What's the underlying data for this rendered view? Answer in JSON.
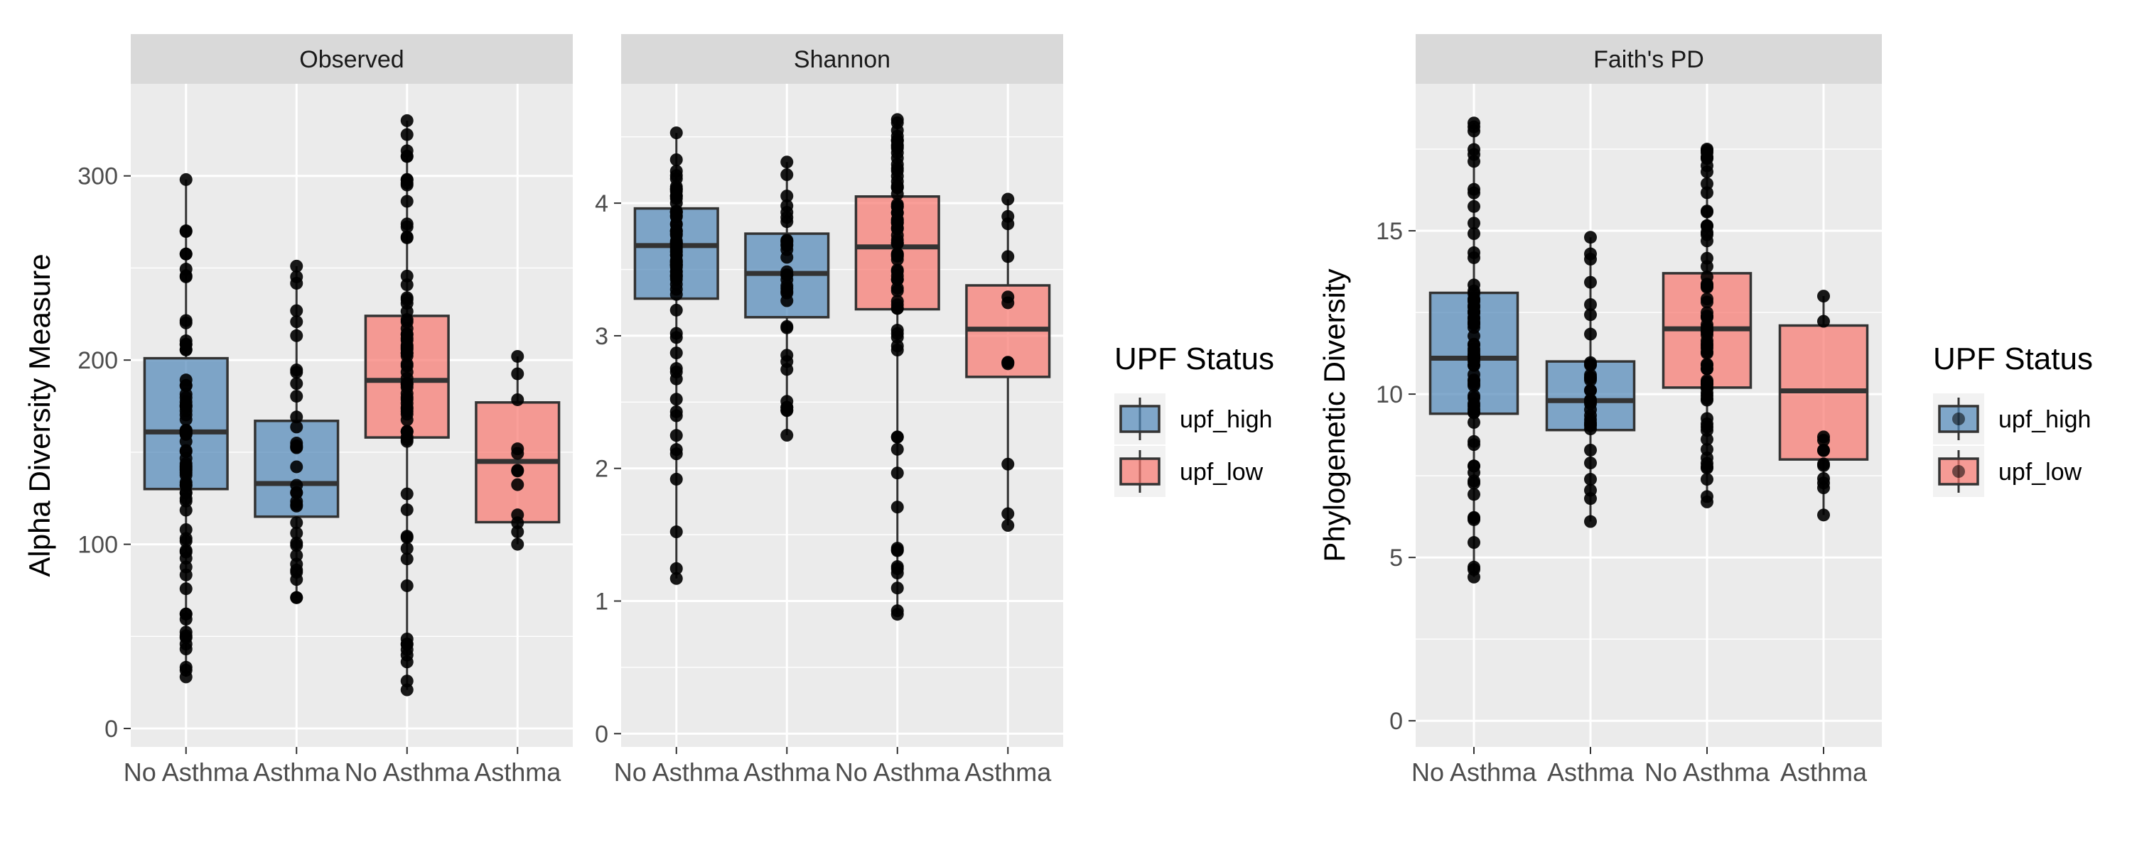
{
  "colors": {
    "panel_bg": "#ebebeb",
    "strip_bg": "#d9d9d9",
    "grid": "#ffffff",
    "upf_high": "#4f86b8",
    "upf_low": "#f8766d",
    "box_edge": "#333333",
    "point": "#000000"
  },
  "legend": {
    "title": "UPF Status",
    "items": [
      {
        "label": "upf_high",
        "color_key": "upf_high"
      },
      {
        "label": "upf_low",
        "color_key": "upf_low"
      }
    ]
  },
  "chart_data": [
    {
      "type": "box",
      "facet": "Observed",
      "ylabel": "Alpha Diversity Measure",
      "ylim": [
        -10,
        350
      ],
      "yticks": [
        0,
        100,
        200,
        300
      ],
      "categories": [
        "No Asthma",
        "Asthma",
        "No Asthma",
        "Asthma"
      ],
      "boxes": [
        {
          "group": "upf_high",
          "label": "No Asthma",
          "q1": 130,
          "median": 161,
          "q3": 201,
          "min": 28,
          "max": 298
        },
        {
          "group": "upf_high",
          "label": "Asthma",
          "q1": 115,
          "median": 133,
          "q3": 167,
          "min": 71,
          "max": 251
        },
        {
          "group": "upf_low",
          "label": "No Asthma",
          "q1": 158,
          "median": 189,
          "q3": 224,
          "min": 21,
          "max": 330
        },
        {
          "group": "upf_low",
          "label": "Asthma",
          "q1": 112,
          "median": 145,
          "q3": 177,
          "min": 100,
          "max": 202
        }
      ],
      "show_legend": false
    },
    {
      "type": "box",
      "facet": "Shannon",
      "ylabel": "",
      "ylim": [
        -0.1,
        4.9
      ],
      "yticks": [
        0,
        1,
        2,
        3,
        4
      ],
      "categories": [
        "No Asthma",
        "Asthma",
        "No Asthma",
        "Asthma"
      ],
      "boxes": [
        {
          "group": "upf_high",
          "label": "No Asthma",
          "q1": 3.28,
          "median": 3.68,
          "q3": 3.96,
          "min": 1.17,
          "max": 4.53
        },
        {
          "group": "upf_high",
          "label": "Asthma",
          "q1": 3.14,
          "median": 3.47,
          "q3": 3.77,
          "min": 2.25,
          "max": 4.31
        },
        {
          "group": "upf_low",
          "label": "No Asthma",
          "q1": 3.2,
          "median": 3.67,
          "q3": 4.05,
          "min": 0.9,
          "max": 4.63
        },
        {
          "group": "upf_low",
          "label": "Asthma",
          "q1": 2.69,
          "median": 3.05,
          "q3": 3.38,
          "min": 1.57,
          "max": 4.03
        }
      ],
      "show_legend": true
    },
    {
      "type": "box",
      "facet": "Faith's PD",
      "ylabel": "Phylogenetic Diversity",
      "ylim": [
        -0.8,
        19.5
      ],
      "yticks": [
        0,
        5,
        10,
        15
      ],
      "categories": [
        "No Asthma",
        "Asthma",
        "No Asthma",
        "Asthma"
      ],
      "boxes": [
        {
          "group": "upf_high",
          "label": "No Asthma",
          "q1": 9.4,
          "median": 11.1,
          "q3": 13.1,
          "min": 4.4,
          "max": 18.3
        },
        {
          "group": "upf_high",
          "label": "Asthma",
          "q1": 8.9,
          "median": 9.8,
          "q3": 11.0,
          "min": 6.1,
          "max": 14.8
        },
        {
          "group": "upf_low",
          "label": "No Asthma",
          "q1": 10.2,
          "median": 12.0,
          "q3": 13.7,
          "min": 6.7,
          "max": 17.5
        },
        {
          "group": "upf_low",
          "label": "Asthma",
          "q1": 8.0,
          "median": 10.1,
          "q3": 12.1,
          "min": 6.3,
          "max": 13.0
        }
      ],
      "show_legend": true
    }
  ]
}
